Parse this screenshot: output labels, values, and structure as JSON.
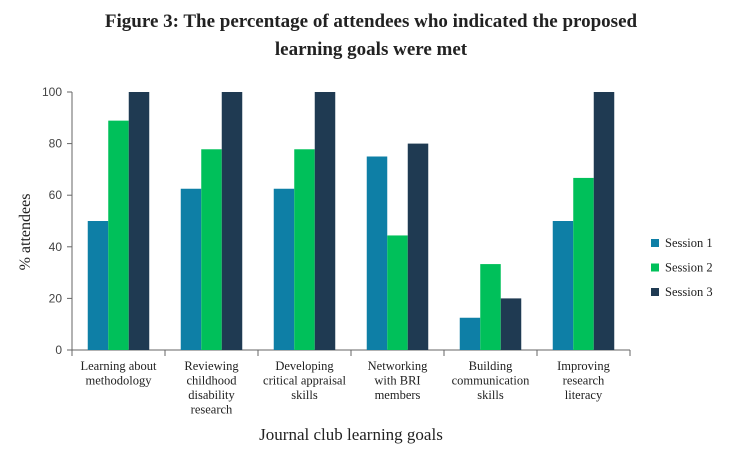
{
  "chart_data": {
    "type": "bar",
    "title_lines": [
      "Figure 3: The percentage of attendees who indicated the proposed",
      "learning goals were met"
    ],
    "xlabel": "Journal club learning goals",
    "ylabel": "% attendees",
    "ylim": [
      0,
      100
    ],
    "yticks": [
      0,
      20,
      40,
      60,
      80,
      100
    ],
    "categories": [
      [
        "Learning about",
        "methodology"
      ],
      [
        "Reviewing",
        "childhood",
        "disability",
        "research"
      ],
      [
        "Developing",
        "critical appraisal",
        "skills"
      ],
      [
        "Networking",
        "with BRI",
        "members"
      ],
      [
        "Building",
        "communication",
        "skills"
      ],
      [
        "Improving",
        "research",
        "literacy"
      ]
    ],
    "series": [
      {
        "name": "Session 1",
        "color": "#0e7fa6",
        "values": [
          50,
          62.5,
          62.5,
          75,
          12.5,
          50
        ]
      },
      {
        "name": "Session 2",
        "color": "#00c05a",
        "values": [
          88.9,
          77.8,
          77.8,
          44.4,
          33.3,
          66.7
        ]
      },
      {
        "name": "Session 3",
        "color": "#1f3a52",
        "values": [
          100,
          100,
          100,
          80,
          20,
          100
        ]
      }
    ],
    "grid": false,
    "legend_position": "right"
  }
}
